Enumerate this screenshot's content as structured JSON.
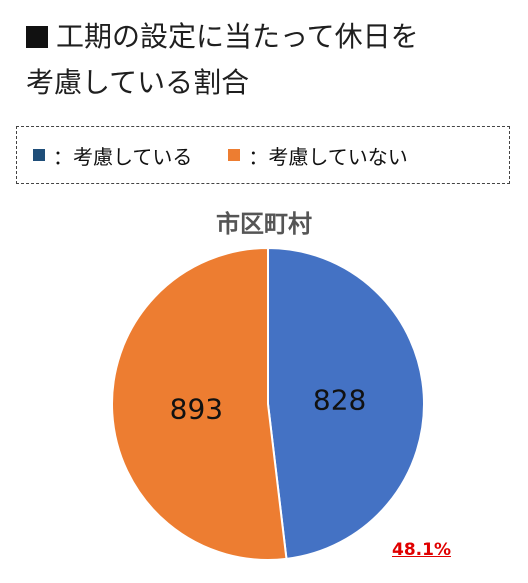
{
  "header": {
    "line1": "工期の設定に当たって休日を",
    "line2": "考慮している割合"
  },
  "legend": {
    "items": [
      {
        "label": "：考慮している",
        "color": "#1F4E79"
      },
      {
        "label": "：考慮していない",
        "color": "#ED7D31"
      }
    ]
  },
  "chart_data": {
    "type": "pie",
    "title": "市区町村",
    "categories": [
      "考慮している",
      "考慮していない"
    ],
    "values": [
      828,
      893
    ],
    "colors": [
      "#4472C4",
      "#ED7D31"
    ],
    "start": "12 o'clock, clockwise",
    "annotation": "48.1%"
  }
}
